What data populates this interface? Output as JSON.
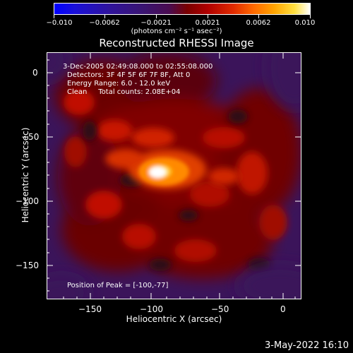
{
  "colorbar": {
    "tick_labels": [
      "−0.010",
      "−0.0062",
      "−0.0021",
      "0.0021",
      "0.0062",
      "0.010"
    ],
    "units": "(photons cm⁻² s⁻¹ asec⁻²)"
  },
  "title": "Reconstructed RHESSI Image",
  "annotations": {
    "time_range": "3-Dec-2005 02:49:08.000 to 02:55:08.000",
    "detectors": "Detectors: 3F 4F 5F 6F 7F 8F, Att 0",
    "energy": "Energy Range: 6.0 - 12.0 keV",
    "clean": "Clean     Total counts: 2.08E+04",
    "peak": "Position of Peak = [-100,-77]"
  },
  "axes": {
    "xlabel": "Heliocentric X (arcsec)",
    "ylabel": "Heliocentric Y (arcsec)",
    "xticks": [
      "−150",
      "−100",
      "−50",
      "0"
    ],
    "yticks": [
      "0",
      "−50",
      "−100",
      "−150"
    ]
  },
  "footer": {
    "timestamp": "3-May-2022 16:10"
  }
}
